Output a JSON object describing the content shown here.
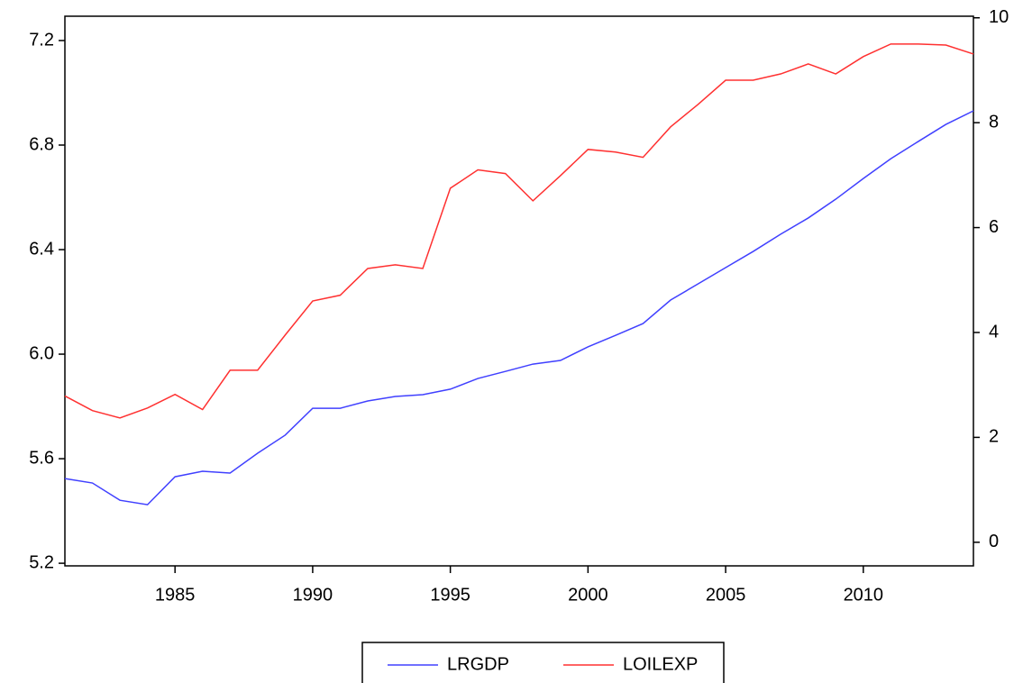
{
  "chart_data": {
    "type": "line",
    "x": [
      1981,
      1982,
      1983,
      1984,
      1985,
      1986,
      1987,
      1988,
      1989,
      1990,
      1991,
      1992,
      1993,
      1994,
      1995,
      1996,
      1997,
      1998,
      1999,
      2000,
      2001,
      2002,
      2003,
      2004,
      2005,
      2006,
      2007,
      2008,
      2009,
      2010,
      2011,
      2012,
      2013,
      2014
    ],
    "series": [
      {
        "name": "LRGDP",
        "color": "#4040ff",
        "values": [
          5.524,
          5.507,
          5.441,
          5.424,
          5.531,
          5.552,
          5.545,
          5.621,
          5.69,
          5.793,
          5.793,
          5.821,
          5.838,
          5.845,
          5.866,
          5.907,
          5.934,
          5.962,
          5.976,
          6.028,
          6.072,
          6.117,
          6.207,
          6.269,
          6.331,
          6.393,
          6.459,
          6.521,
          6.593,
          6.672,
          6.748,
          6.814,
          6.879,
          6.931
        ]
      },
      {
        "name": "LOILEXP",
        "color": "#ff3030",
        "axis": "y2",
        "values": [
          2.79,
          2.51,
          2.37,
          2.56,
          2.82,
          2.53,
          3.28,
          3.28,
          3.95,
          4.6,
          4.71,
          5.22,
          5.29,
          5.22,
          6.75,
          7.1,
          7.03,
          6.51,
          6.99,
          7.49,
          7.44,
          7.34,
          7.92,
          8.35,
          8.81,
          8.81,
          8.93,
          9.12,
          8.93,
          9.26,
          9.5,
          9.5,
          9.48,
          9.31
        ]
      }
    ],
    "xlim": [
      1981,
      2014
    ],
    "xticks": [
      1985,
      1990,
      1995,
      2000,
      2005,
      2010
    ],
    "ylim": [
      5.19,
      7.293
    ],
    "yticks": [
      {
        "value": 5.2,
        "label": "5.2"
      },
      {
        "value": 5.6,
        "label": "5.6"
      },
      {
        "value": 6.0,
        "label": "6.0"
      },
      {
        "value": 6.4,
        "label": "6.4"
      },
      {
        "value": 6.8,
        "label": "6.8"
      },
      {
        "value": 7.2,
        "label": "7.2"
      }
    ],
    "y2lim": [
      -0.45,
      10.03
    ],
    "y2ticks": [
      0,
      2,
      4,
      6,
      8,
      10
    ],
    "grid": false,
    "legend": "bottom"
  }
}
